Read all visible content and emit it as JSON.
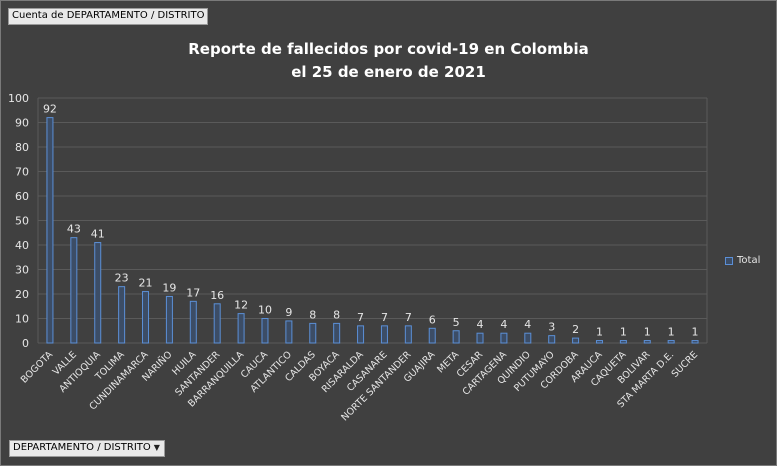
{
  "pivot": {
    "value_field": "Cuenta de DEPARTAMENTO / DISTRITO",
    "axis_field": "DEPARTAMENTO / DISTRITO",
    "axis_dropdown_icon": "triangle-down-icon"
  },
  "chart_data": {
    "type": "bar",
    "title_lines": [
      "Reporte de fallecidos por covid-19 en Colombia",
      "el 25 de enero de 2021"
    ],
    "categories": [
      "BOGOTA",
      "VALLE",
      "ANTIOQUIA",
      "TOLIMA",
      "CUNDINAMARCA",
      "NARIÑO",
      "HUILA",
      "SANTANDER",
      "BARRANQUILLA",
      "CAUCA",
      "ATLANTICO",
      "CALDAS",
      "BOYACA",
      "RISARALDA",
      "CASANARE",
      "NORTE SANTANDER",
      "GUAJIRA",
      "META",
      "CESAR",
      "CARTAGENA",
      "QUINDIO",
      "PUTUMAYO",
      "CORDOBA",
      "ARAUCA",
      "CAQUETA",
      "BOLIVAR",
      "STA MARTA D.E.",
      "SUCRE"
    ],
    "series": [
      {
        "name": "Total",
        "values": [
          92,
          43,
          41,
          23,
          21,
          19,
          17,
          16,
          12,
          10,
          9,
          8,
          8,
          7,
          7,
          7,
          6,
          5,
          4,
          4,
          4,
          3,
          2,
          1,
          1,
          1,
          1,
          1
        ]
      }
    ],
    "ylim": [
      0,
      100
    ],
    "yticks": [
      0,
      10,
      20,
      30,
      40,
      50,
      60,
      70,
      80,
      90,
      100
    ],
    "grid": true,
    "data_labels": true,
    "legend_position": "right",
    "colors": {
      "background": "#404040",
      "bar_fill": "#3c4d66",
      "bar_edge": "#5b8fd6",
      "gridline": "#5a5a5a",
      "text": "#e6e6e6"
    }
  }
}
